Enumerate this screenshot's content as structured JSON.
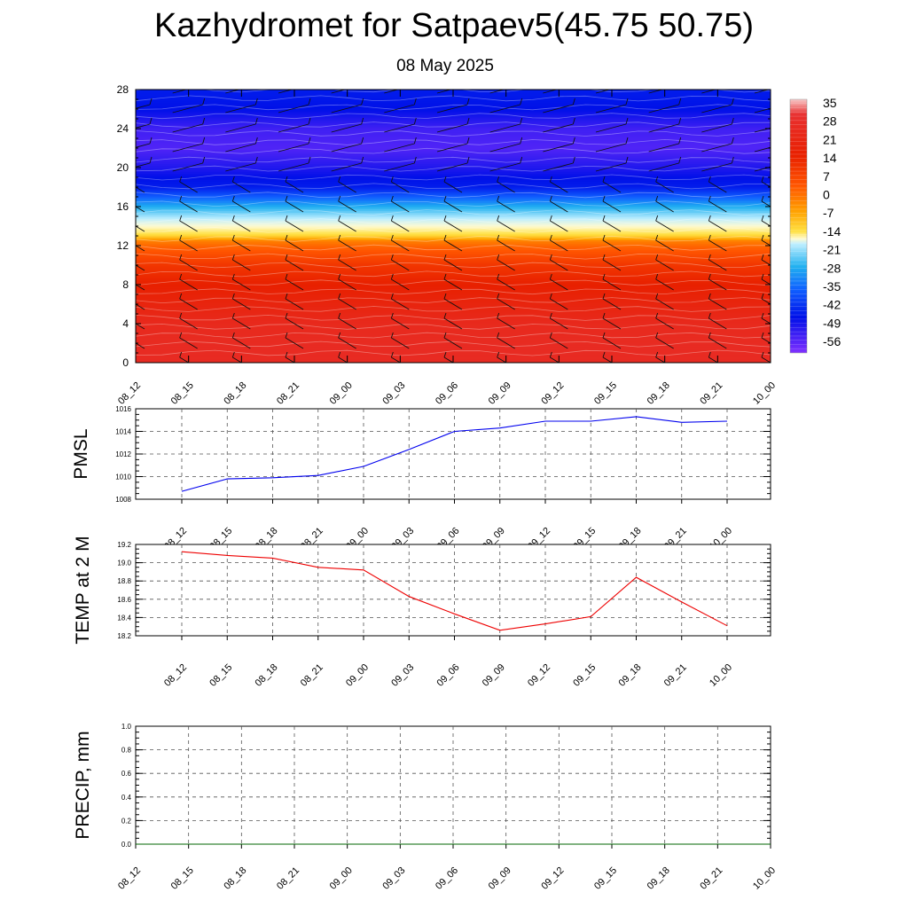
{
  "title": "Kazhydromet for Satpaev5(45.75 50.75)",
  "subtitle": "08 May 2025",
  "chart_data": [
    {
      "type": "heatmap",
      "x_ticks": [
        "08_12",
        "08_15",
        "08_18",
        "08_21",
        "09_00",
        "09_03",
        "09_06",
        "09_09",
        "09_12",
        "09_15",
        "09_18",
        "09_21",
        "10_00"
      ],
      "y_ticks": [
        "0",
        "4",
        "8",
        "12",
        "16",
        "20",
        "24",
        "28"
      ],
      "ylim": [
        0,
        28
      ],
      "colorbar_labels": [
        "35",
        "28",
        "21",
        "14",
        "7",
        "0",
        "-7",
        "-14",
        "-21",
        "-28",
        "-35",
        "-42",
        "-49",
        "-56"
      ],
      "levels_y": [
        0,
        2,
        4,
        6,
        8,
        10,
        11,
        12,
        12.5,
        13,
        14,
        15,
        16,
        17,
        18,
        19,
        20,
        22,
        24,
        26,
        28
      ],
      "values_by_level": [
        22,
        22,
        21,
        18,
        15,
        11,
        7,
        3,
        0,
        -10,
        -20,
        -30,
        -40,
        -50,
        -60,
        -62,
        -64,
        -67,
        -66,
        -62,
        -60
      ]
    },
    {
      "type": "line",
      "ylabel": "PMSL",
      "x_ticks": [
        "08_12",
        "08_15",
        "08_18",
        "08_21",
        "09_00",
        "09_03",
        "09_06",
        "09_09",
        "09_12",
        "09_15",
        "09_18",
        "09_21",
        "10_00"
      ],
      "y_ticks": [
        "1008",
        "1010",
        "1012",
        "1014",
        "1016"
      ],
      "ylim": [
        1008,
        1016
      ],
      "series": [
        {
          "values": [
            1008.7,
            1009.8,
            1009.9,
            1010.1,
            1010.9,
            1012.4,
            1014.0,
            1014.3,
            1014.9,
            1014.9,
            1015.3,
            1014.8,
            1014.9
          ],
          "color": "#0000ee"
        }
      ]
    },
    {
      "type": "line",
      "ylabel": "TEMP at 2 M",
      "x_ticks": [
        "08_12",
        "08_15",
        "08_18",
        "08_21",
        "09_00",
        "09_03",
        "09_06",
        "09_09",
        "09_12",
        "09_15",
        "09_18",
        "09_21",
        "10_00"
      ],
      "y_ticks": [
        "18.2",
        "18.4",
        "18.6",
        "18.8",
        "19.0",
        "19.2"
      ],
      "ylim": [
        18.2,
        19.2
      ],
      "series": [
        {
          "values": [
            19.12,
            19.08,
            19.05,
            18.95,
            18.92,
            18.63,
            18.44,
            18.26,
            18.33,
            18.41,
            18.84,
            18.57,
            18.31
          ],
          "color": "#ee0000"
        }
      ]
    },
    {
      "type": "line",
      "ylabel": "PRECIP, mm",
      "x_ticks": [
        "08_12",
        "08_15",
        "08_18",
        "08_21",
        "09_00",
        "09_03",
        "09_06",
        "09_09",
        "09_12",
        "09_15",
        "09_18",
        "09_21",
        "10_00"
      ],
      "y_ticks": [
        "0.0",
        "0.2",
        "0.4",
        "0.6",
        "0.8",
        "1.0"
      ],
      "ylim": [
        0,
        1
      ],
      "series": [
        {
          "values": [
            0,
            0,
            0,
            0,
            0,
            0,
            0,
            0,
            0,
            0,
            0,
            0,
            0
          ],
          "color": "#006400"
        }
      ]
    }
  ]
}
